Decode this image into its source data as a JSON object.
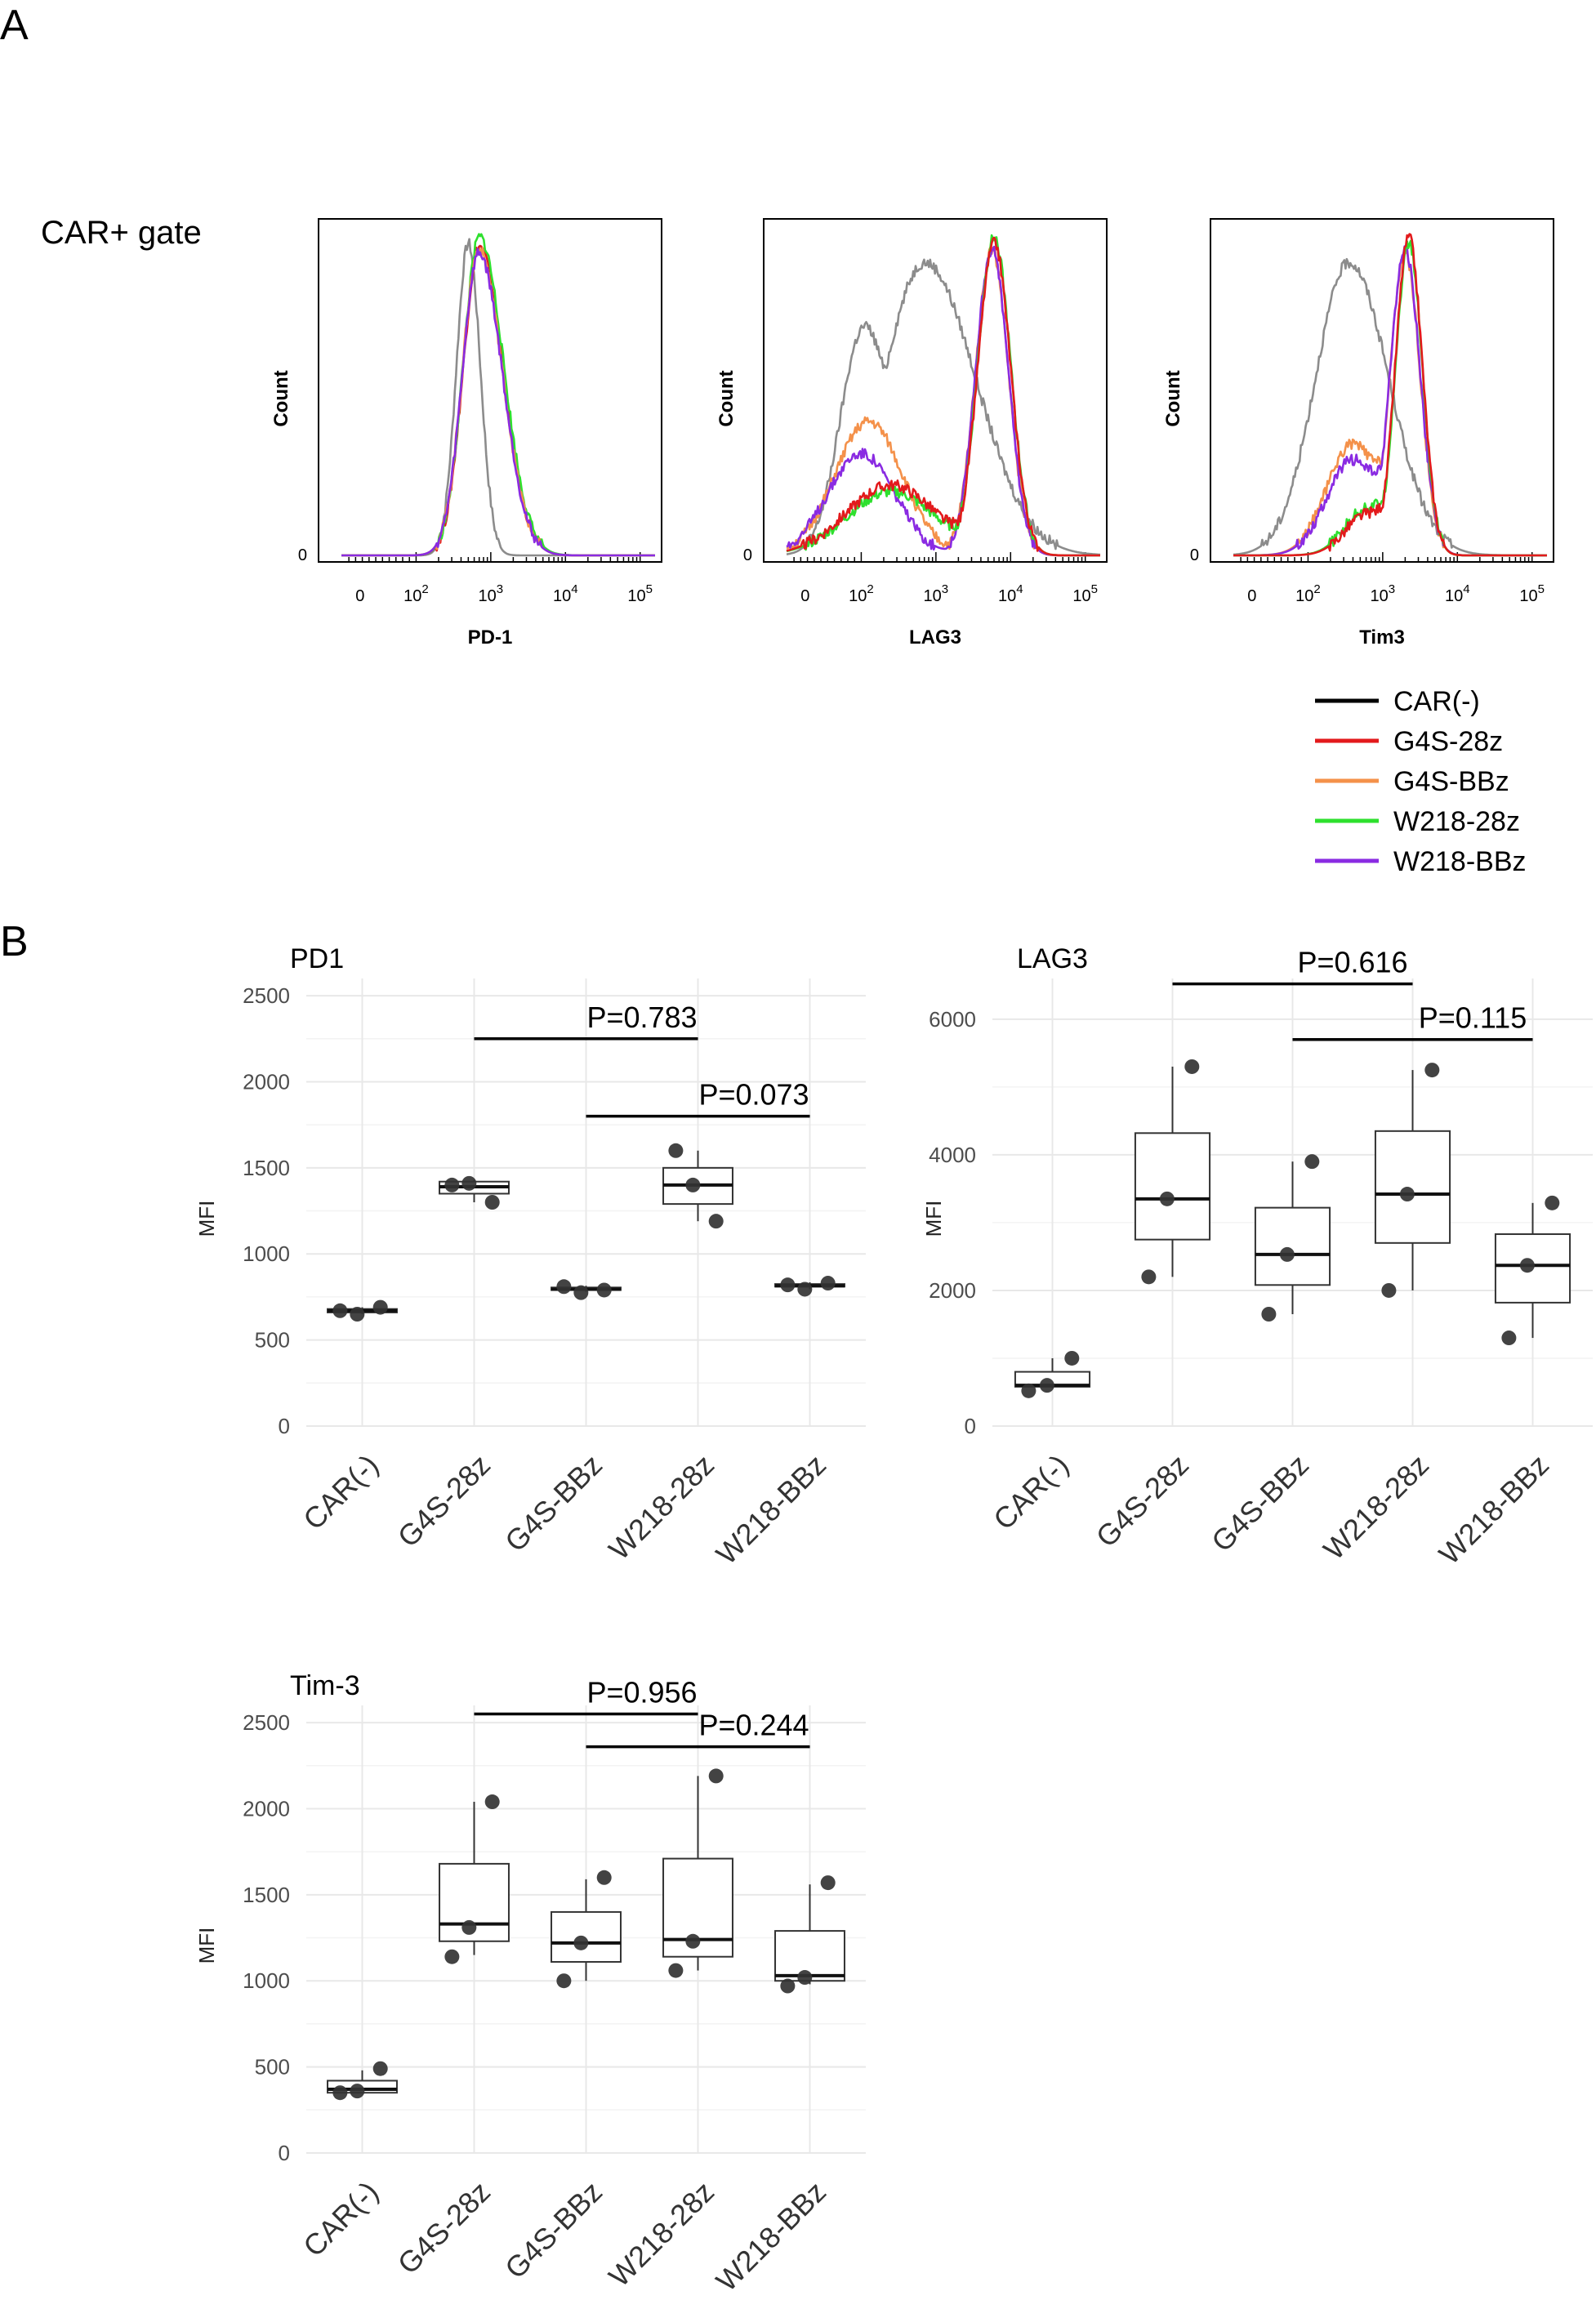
{
  "panel_a_label": "A",
  "panel_b_label": "B",
  "gate_label": "CAR+ gate",
  "colors": {
    "CAR(-)": "#8c8c8c",
    "G4S-28z": "#e31a1c",
    "G4S-BBz": "#f4914a",
    "W218-28z": "#2ee02e",
    "W218-BBz": "#8a2be2",
    "legend_CAR(-)": "#000000"
  },
  "legend": [
    "CAR(-)",
    "G4S-28z",
    "G4S-BBz",
    "W218-28z",
    "W218-BBz"
  ],
  "chart_data": [
    {
      "type": "line",
      "subtype": "flow-cytometry-histogram",
      "xlabel": "PD-1",
      "ylabel": "Count",
      "x_scale": "biexponential",
      "x_tick_labels": [
        "0",
        "10^2",
        "10^3",
        "10^4",
        "10^5"
      ],
      "y_tick_labels": [
        "0"
      ],
      "x_log_range": [
        1.0,
        5.2
      ],
      "series": [
        {
          "name": "CAR(-)",
          "peak_log": 2.7,
          "width": 0.16,
          "height": 0.98,
          "bumps": []
        },
        {
          "name": "G4S-28z",
          "peak_log": 2.85,
          "width": 0.22,
          "height": 0.97,
          "tail": 0.35,
          "bumps": []
        },
        {
          "name": "W218-28z",
          "peak_log": 2.85,
          "width": 0.22,
          "height": 1.0,
          "tail": 0.38,
          "bumps": []
        },
        {
          "name": "G4S-BBz",
          "peak_log": 2.84,
          "width": 0.22,
          "height": 0.96,
          "tail": 0.36,
          "bumps": []
        },
        {
          "name": "W218-BBz",
          "peak_log": 2.84,
          "width": 0.22,
          "height": 0.95,
          "tail": 0.36,
          "bumps": []
        }
      ]
    },
    {
      "type": "line",
      "subtype": "flow-cytometry-histogram",
      "xlabel": "LAG3",
      "ylabel": "Count",
      "x_scale": "biexponential",
      "x_tick_labels": [
        "0",
        "10^2",
        "10^3",
        "10^4",
        "10^5"
      ],
      "y_tick_labels": [
        "0"
      ],
      "x_log_range": [
        1.0,
        5.2
      ],
      "series": [
        {
          "name": "CAR(-)",
          "peak_log": 2.85,
          "width": 0.55,
          "height": 0.92,
          "tail": 0.2,
          "bumps": [
            [
              2.0,
              0.6,
              0.3
            ]
          ]
        },
        {
          "name": "G4S-BBz",
          "peak_log": 3.75,
          "width": 0.22,
          "height": 0.96,
          "tail": 0.0,
          "bumps": [
            [
              2.1,
              0.42,
              0.45
            ]
          ]
        },
        {
          "name": "W218-BBz",
          "peak_log": 3.75,
          "width": 0.22,
          "height": 0.96,
          "tail": 0.0,
          "bumps": [
            [
              2.0,
              0.32,
              0.45
            ]
          ]
        },
        {
          "name": "W218-28z",
          "peak_log": 3.78,
          "width": 0.22,
          "height": 1.0,
          "tail": 0.0,
          "bumps": [
            [
              2.4,
              0.2,
              0.6
            ]
          ]
        },
        {
          "name": "G4S-28z",
          "peak_log": 3.78,
          "width": 0.22,
          "height": 0.98,
          "tail": 0.0,
          "bumps": [
            [
              2.4,
              0.22,
              0.6
            ]
          ]
        }
      ]
    },
    {
      "type": "line",
      "subtype": "flow-cytometry-histogram",
      "xlabel": "Tim3",
      "ylabel": "Count",
      "x_scale": "biexponential",
      "x_tick_labels": [
        "0",
        "10^2",
        "10^3",
        "10^4",
        "10^5"
      ],
      "y_tick_labels": [
        "0"
      ],
      "x_log_range": [
        1.0,
        5.2
      ],
      "series": [
        {
          "name": "CAR(-)",
          "peak_log": 2.55,
          "width": 0.45,
          "height": 0.92,
          "tail": 0.15,
          "bumps": []
        },
        {
          "name": "G4S-BBz",
          "peak_log": 3.3,
          "width": 0.2,
          "height": 0.95,
          "tail": 0.0,
          "bumps": [
            [
              2.6,
              0.35,
              0.35
            ]
          ]
        },
        {
          "name": "W218-BBz",
          "peak_log": 3.3,
          "width": 0.2,
          "height": 0.96,
          "tail": 0.0,
          "bumps": [
            [
              2.6,
              0.3,
              0.35
            ]
          ]
        },
        {
          "name": "W218-28z",
          "peak_log": 3.35,
          "width": 0.18,
          "height": 0.98,
          "tail": 0.0,
          "bumps": [
            [
              2.8,
              0.15,
              0.3
            ]
          ]
        },
        {
          "name": "G4S-28z",
          "peak_log": 3.35,
          "width": 0.18,
          "height": 1.0,
          "tail": 0.0,
          "bumps": [
            [
              2.8,
              0.13,
              0.3
            ]
          ]
        }
      ]
    },
    {
      "type": "box",
      "title": "PD1",
      "ylabel": "MFI",
      "categories": [
        "CAR(-)",
        "G4S-28z",
        "G4S-BBz",
        "W218-28z",
        "W218-BBz"
      ],
      "ylim": [
        0,
        2600
      ],
      "yticks": [
        0,
        500,
        1000,
        1500,
        2000,
        2500
      ],
      "boxes": [
        {
          "q1": 660,
          "median": 670,
          "q3": 680,
          "min": 650,
          "max": 690
        },
        {
          "q1": 1350,
          "median": 1390,
          "q3": 1420,
          "min": 1300,
          "max": 1430
        },
        {
          "q1": 790,
          "median": 795,
          "q3": 805,
          "min": 780,
          "max": 815
        },
        {
          "q1": 1290,
          "median": 1400,
          "q3": 1500,
          "min": 1190,
          "max": 1600
        },
        {
          "q1": 810,
          "median": 815,
          "q3": 825,
          "min": 795,
          "max": 835
        }
      ],
      "points": [
        [
          [
            0,
            690
          ],
          [
            0,
            650
          ],
          [
            0,
            670
          ]
        ],
        [
          [
            1,
            1300
          ],
          [
            1,
            1410
          ],
          [
            1,
            1400
          ]
        ],
        [
          [
            2,
            790
          ],
          [
            2,
            775
          ],
          [
            2,
            810
          ]
        ],
        [
          [
            3,
            1190
          ],
          [
            3,
            1400
          ],
          [
            3,
            1600
          ]
        ],
        [
          [
            4,
            830
          ],
          [
            4,
            795
          ],
          [
            4,
            820
          ]
        ]
      ],
      "annotations": [
        {
          "label": "P=0.783",
          "from": 1,
          "to": 3,
          "y": 2250
        },
        {
          "label": "P=0.073",
          "from": 2,
          "to": 4,
          "y": 1800
        }
      ]
    },
    {
      "type": "box",
      "title": "LAG3",
      "ylabel": "MFI",
      "categories": [
        "CAR(-)",
        "G4S-28z",
        "G4S-BBz",
        "W218-28z",
        "W218-BBz"
      ],
      "ylim": [
        0,
        6600
      ],
      "yticks": [
        0,
        2000,
        4000,
        6000
      ],
      "boxes": [
        {
          "q1": 580,
          "median": 600,
          "q3": 800,
          "min": 560,
          "max": 1000
        },
        {
          "q1": 2750,
          "median": 3350,
          "q3": 4320,
          "min": 2200,
          "max": 5300
        },
        {
          "q1": 2080,
          "median": 2530,
          "q3": 3220,
          "min": 1650,
          "max": 3900
        },
        {
          "q1": 2700,
          "median": 3420,
          "q3": 4350,
          "min": 2000,
          "max": 5250
        },
        {
          "q1": 1820,
          "median": 2370,
          "q3": 2830,
          "min": 1300,
          "max": 3290
        }
      ],
      "points": [
        [
          [
            0,
            1000
          ],
          [
            0,
            600
          ],
          [
            0,
            520
          ]
        ],
        [
          [
            1,
            5300
          ],
          [
            1,
            3350
          ],
          [
            1,
            2200
          ]
        ],
        [
          [
            2,
            3900
          ],
          [
            2,
            2530
          ],
          [
            2,
            1650
          ]
        ],
        [
          [
            3,
            5250
          ],
          [
            3,
            3420
          ],
          [
            3,
            2000
          ]
        ],
        [
          [
            4,
            3290
          ],
          [
            4,
            2370
          ],
          [
            4,
            1300
          ]
        ]
      ],
      "annotations": [
        {
          "label": "P=0.616",
          "from": 1,
          "to": 3,
          "y": 6520
        },
        {
          "label": "P=0.115",
          "from": 2,
          "to": 4,
          "y": 5700
        }
      ]
    },
    {
      "type": "box",
      "title": "Tim-3",
      "ylabel": "MFI",
      "categories": [
        "CAR(-)",
        "G4S-28z",
        "G4S-BBz",
        "W218-28z",
        "W218-BBz"
      ],
      "ylim": [
        0,
        2600
      ],
      "yticks": [
        0,
        500,
        1000,
        1500,
        2000,
        2500
      ],
      "boxes": [
        {
          "q1": 350,
          "median": 370,
          "q3": 420,
          "min": 350,
          "max": 480
        },
        {
          "q1": 1230,
          "median": 1330,
          "q3": 1680,
          "min": 1150,
          "max": 2040
        },
        {
          "q1": 1110,
          "median": 1220,
          "q3": 1400,
          "min": 1000,
          "max": 1590
        },
        {
          "q1": 1140,
          "median": 1240,
          "q3": 1710,
          "min": 1060,
          "max": 2190
        },
        {
          "q1": 1000,
          "median": 1030,
          "q3": 1290,
          "min": 980,
          "max": 1560
        }
      ],
      "points": [
        [
          [
            0,
            490
          ],
          [
            0,
            360
          ],
          [
            0,
            350
          ]
        ],
        [
          [
            1,
            2040
          ],
          [
            1,
            1310
          ],
          [
            1,
            1140
          ]
        ],
        [
          [
            2,
            1600
          ],
          [
            2,
            1220
          ],
          [
            2,
            1000
          ]
        ],
        [
          [
            3,
            2190
          ],
          [
            3,
            1230
          ],
          [
            3,
            1060
          ]
        ],
        [
          [
            4,
            1570
          ],
          [
            4,
            1020
          ],
          [
            4,
            970
          ]
        ]
      ],
      "annotations": [
        {
          "label": "P=0.956",
          "from": 1,
          "to": 3,
          "y": 2550
        },
        {
          "label": "P=0.244",
          "from": 2,
          "to": 4,
          "y": 2360
        }
      ]
    }
  ]
}
